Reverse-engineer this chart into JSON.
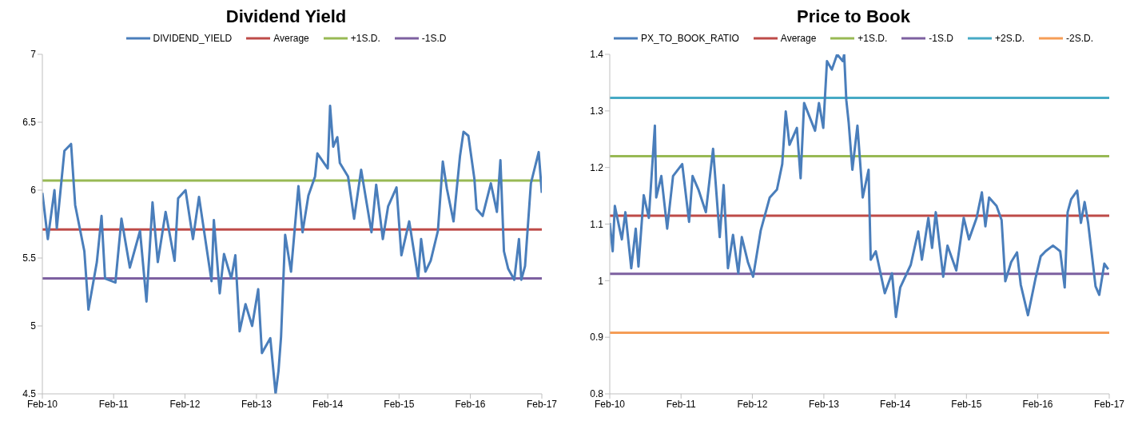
{
  "chart_data": [
    {
      "type": "line",
      "title": "Dividend Yield",
      "legend": "top",
      "grid": false,
      "xlim": [
        "2010-02",
        "2017-02"
      ],
      "xticks": [
        {
          "value": "2010-02",
          "label": "Feb-10"
        },
        {
          "value": "2011-02",
          "label": "Feb-11"
        },
        {
          "value": "2012-02",
          "label": "Feb-12"
        },
        {
          "value": "2013-02",
          "label": "Feb-13"
        },
        {
          "value": "2014-02",
          "label": "Feb-14"
        },
        {
          "value": "2015-02",
          "label": "Feb-15"
        },
        {
          "value": "2016-02",
          "label": "Feb-16"
        },
        {
          "value": "2017-02",
          "label": "Feb-17"
        }
      ],
      "ylim": [
        4.5,
        7
      ],
      "yticks": [
        4.5,
        5,
        5.5,
        6,
        6.5,
        7
      ],
      "series": [
        {
          "name": "DIVIDEND_YIELD",
          "color": "#4a7ebb",
          "x": [
            "2010-02-01",
            "2010-03-01",
            "2010-04-04",
            "2010-04-16",
            "2010-05-25",
            "2010-06-28",
            "2010-07-19",
            "2010-09-04",
            "2010-09-25",
            "2010-11-07",
            "2010-12-01",
            "2010-12-19",
            "2011-02-10",
            "2011-03-13",
            "2011-04-25",
            "2011-06-16",
            "2011-07-19",
            "2011-08-19",
            "2011-09-15",
            "2011-10-25",
            "2011-12-10",
            "2011-12-28",
            "2012-02-04",
            "2012-03-13",
            "2012-04-13",
            "2012-06-16",
            "2012-06-28",
            "2012-07-28",
            "2012-08-19",
            "2012-09-25",
            "2012-10-16",
            "2012-11-07",
            "2012-12-07",
            "2013-01-10",
            "2013-02-10",
            "2013-03-01",
            "2013-04-13",
            "2013-05-10",
            "2013-05-25",
            "2013-06-07",
            "2013-06-28",
            "2013-07-28",
            "2013-09-04",
            "2013-09-25",
            "2013-10-25",
            "2013-11-28",
            "2013-12-10",
            "2014-02-01",
            "2014-02-13",
            "2014-03-01",
            "2014-03-22",
            "2014-04-04",
            "2014-05-16",
            "2014-06-16",
            "2014-07-22",
            "2014-09-13",
            "2014-10-07",
            "2014-11-10",
            "2014-12-07",
            "2015-01-19",
            "2015-02-13",
            "2015-03-25",
            "2015-05-10",
            "2015-05-25",
            "2015-06-16",
            "2015-07-13",
            "2015-08-19",
            "2015-09-13",
            "2015-10-04",
            "2015-11-07",
            "2015-12-10",
            "2015-12-28",
            "2016-01-22",
            "2016-02-22",
            "2016-03-04",
            "2016-04-04",
            "2016-05-16",
            "2016-06-16",
            "2016-07-04",
            "2016-07-22",
            "2016-08-13",
            "2016-09-13",
            "2016-10-07",
            "2016-10-19",
            "2016-11-07",
            "2016-12-07",
            "2017-01-16",
            "2017-02-01"
          ],
          "values": [
            5.98,
            5.64,
            6.0,
            5.72,
            6.29,
            6.34,
            5.89,
            5.55,
            5.12,
            5.47,
            5.81,
            5.35,
            5.32,
            5.79,
            5.43,
            5.7,
            5.18,
            5.91,
            5.47,
            5.84,
            5.48,
            5.94,
            6.0,
            5.64,
            5.95,
            5.33,
            5.78,
            5.24,
            5.53,
            5.35,
            5.52,
            4.96,
            5.16,
            5.0,
            5.27,
            4.8,
            4.91,
            4.5,
            4.67,
            4.92,
            5.67,
            5.4,
            6.03,
            5.69,
            5.96,
            6.1,
            6.27,
            6.16,
            6.62,
            6.32,
            6.39,
            6.2,
            6.1,
            5.79,
            6.15,
            5.69,
            6.04,
            5.64,
            5.88,
            6.02,
            5.52,
            5.77,
            5.35,
            5.64,
            5.4,
            5.48,
            5.7,
            6.21,
            6.01,
            5.77,
            6.25,
            6.43,
            6.4,
            6.08,
            5.86,
            5.81,
            6.05,
            5.84,
            6.22,
            5.55,
            5.42,
            5.34,
            5.64,
            5.34,
            5.44,
            6.05,
            6.28,
            5.98
          ]
        }
      ],
      "ref_lines": [
        {
          "axis": "y",
          "value": 5.71,
          "label": "Average",
          "color": "#be4b48"
        },
        {
          "axis": "y",
          "value": 6.07,
          "label": "+1S.D.",
          "color": "#98b954"
        },
        {
          "axis": "y",
          "value": 5.35,
          "label": "-1S.D",
          "color": "#7d60a0"
        }
      ]
    },
    {
      "type": "line",
      "title": "Price to Book",
      "legend": "top",
      "grid": false,
      "xlim": [
        "2010-02",
        "2017-02"
      ],
      "xticks": [
        {
          "value": "2010-02",
          "label": "Feb-10"
        },
        {
          "value": "2011-02",
          "label": "Feb-11"
        },
        {
          "value": "2012-02",
          "label": "Feb-12"
        },
        {
          "value": "2013-02",
          "label": "Feb-13"
        },
        {
          "value": "2014-02",
          "label": "Feb-14"
        },
        {
          "value": "2015-02",
          "label": "Feb-15"
        },
        {
          "value": "2016-02",
          "label": "Feb-16"
        },
        {
          "value": "2017-02",
          "label": "Feb-17"
        }
      ],
      "ylim": [
        0.8,
        1.4
      ],
      "yticks": [
        0.8,
        0.9,
        1,
        1.1,
        1.2,
        1.3,
        1.4
      ],
      "series": [
        {
          "name": "PX_TO_BOOK_RATIO",
          "color": "#4a7ebb",
          "x": [
            "2010-02-01",
            "2010-02-16",
            "2010-02-27",
            "2010-03-23",
            "2010-04-04",
            "2010-04-22",
            "2010-05-22",
            "2010-06-14",
            "2010-06-28",
            "2010-07-25",
            "2010-08-20",
            "2010-09-20",
            "2010-09-27",
            "2010-10-23",
            "2010-11-22",
            "2010-12-22",
            "2011-02-07",
            "2011-03-14",
            "2011-04-01",
            "2011-05-01",
            "2011-06-08",
            "2011-07-15",
            "2011-08-18",
            "2011-09-07",
            "2011-09-29",
            "2011-10-25",
            "2011-11-21",
            "2011-12-09",
            "2012-01-09",
            "2012-02-05",
            "2012-03-15",
            "2012-04-30",
            "2012-06-06",
            "2012-07-03",
            "2012-07-21",
            "2012-08-09",
            "2012-09-16",
            "2012-10-05",
            "2012-10-23",
            "2012-12-18",
            "2013-01-07",
            "2013-01-29",
            "2013-02-17",
            "2013-03-14",
            "2013-04-10",
            "2013-05-09",
            "2013-05-16",
            "2013-05-27",
            "2013-06-08",
            "2013-06-27",
            "2013-07-23",
            "2013-08-19",
            "2013-09-18",
            "2013-09-29",
            "2013-10-25",
            "2013-12-10",
            "2014-01-16",
            "2014-02-05",
            "2014-02-27",
            "2014-04-22",
            "2014-05-30",
            "2014-06-18",
            "2014-07-21",
            "2014-08-09",
            "2014-08-28",
            "2014-10-05",
            "2014-10-27",
            "2014-12-11",
            "2015-01-18",
            "2015-02-14",
            "2015-03-25",
            "2015-04-21",
            "2015-05-09",
            "2015-05-28",
            "2015-07-05",
            "2015-07-31",
            "2015-08-19",
            "2015-09-18",
            "2015-10-18",
            "2015-11-06",
            "2015-12-13",
            "2016-01-20",
            "2016-02-16",
            "2016-03-12",
            "2016-04-19",
            "2016-05-26",
            "2016-06-18",
            "2016-07-03",
            "2016-07-21",
            "2016-08-21",
            "2016-09-09",
            "2016-09-28",
            "2016-10-16",
            "2016-11-23",
            "2016-12-12",
            "2017-01-07",
            "2017-01-27"
          ],
          "values": [
            1.102,
            1.052,
            1.132,
            1.092,
            1.073,
            1.121,
            1.022,
            1.092,
            1.025,
            1.151,
            1.111,
            1.274,
            1.147,
            1.185,
            1.092,
            1.185,
            1.206,
            1.104,
            1.185,
            1.161,
            1.121,
            1.233,
            1.077,
            1.169,
            1.022,
            1.081,
            1.013,
            1.077,
            1.033,
            1.007,
            1.089,
            1.147,
            1.161,
            1.206,
            1.299,
            1.24,
            1.27,
            1.181,
            1.314,
            1.265,
            1.314,
            1.27,
            1.388,
            1.373,
            1.4,
            1.388,
            1.4,
            1.319,
            1.28,
            1.196,
            1.274,
            1.147,
            1.196,
            1.037,
            1.052,
            0.978,
            1.013,
            0.936,
            0.988,
            1.028,
            1.087,
            1.037,
            1.111,
            1.058,
            1.121,
            1.007,
            1.062,
            1.018,
            1.111,
            1.073,
            1.111,
            1.156,
            1.096,
            1.147,
            1.132,
            1.107,
            0.999,
            1.033,
            1.05,
            0.993,
            0.939,
            1.003,
            1.043,
            1.052,
            1.062,
            1.052,
            0.988,
            1.121,
            1.144,
            1.159,
            1.102,
            1.139,
            1.102,
            0.99,
            0.975,
            1.03,
            1.02
          ]
        }
      ],
      "ref_lines": [
        {
          "axis": "y",
          "value": 1.115,
          "label": "Average",
          "color": "#be4b48"
        },
        {
          "axis": "y",
          "value": 1.22,
          "label": "+1S.D.",
          "color": "#98b954"
        },
        {
          "axis": "y",
          "value": 1.012,
          "label": "-1S.D",
          "color": "#7d60a0"
        },
        {
          "axis": "y",
          "value": 1.323,
          "label": "+2S.D.",
          "color": "#46aac5"
        },
        {
          "axis": "y",
          "value": 0.908,
          "label": "-2S.D.",
          "color": "#f59d56"
        }
      ]
    }
  ]
}
